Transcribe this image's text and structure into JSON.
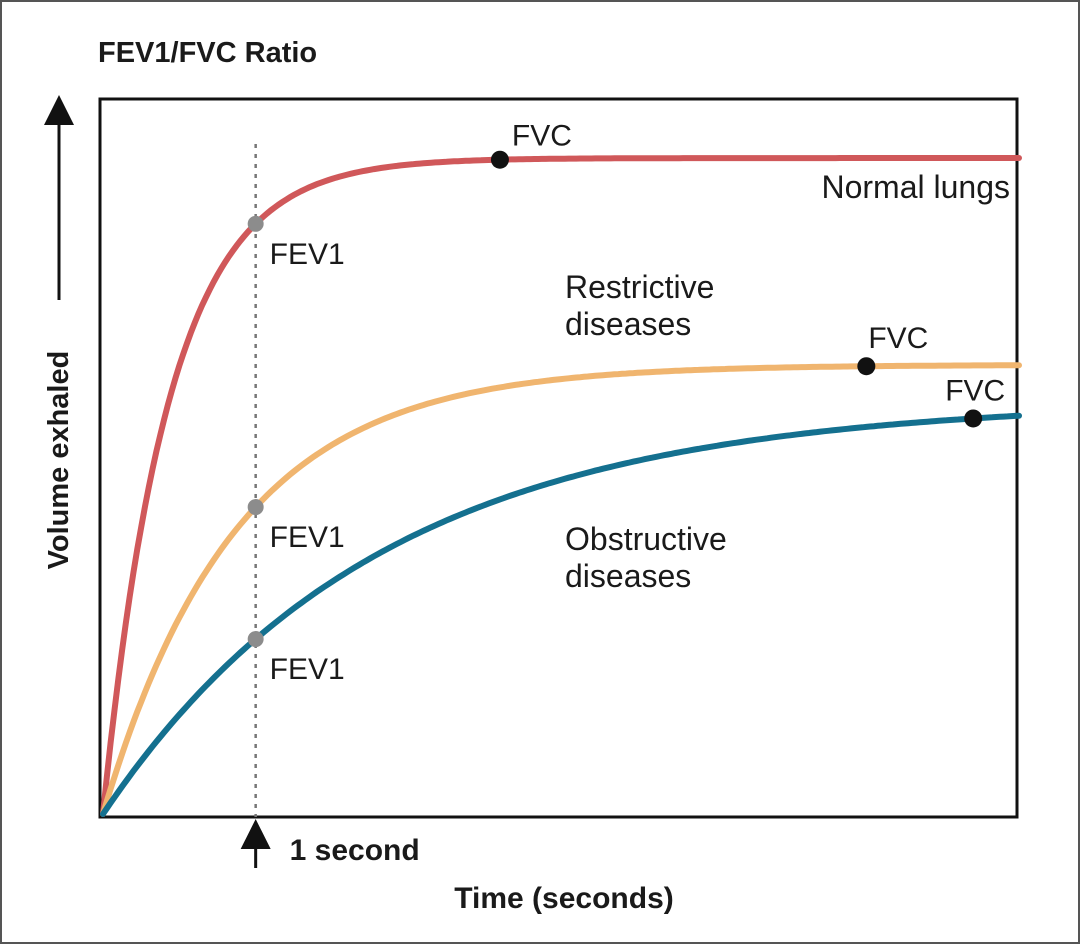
{
  "chart_data": {
    "type": "line",
    "title": "FEV1/FVC Ratio",
    "xlabel": "Time (seconds)",
    "ylabel": "Volume exhaled",
    "xlim": [
      0,
      6
    ],
    "ylim": [
      0,
      1
    ],
    "grid": false,
    "marker": {
      "x": 1,
      "label": "1 second"
    },
    "series": [
      {
        "name": "Normal lungs",
        "color": "#d0585a",
        "plateau": 0.92,
        "rate": 2.3,
        "fev1": {
          "x": 1,
          "label": "FEV1"
        },
        "fvc": {
          "x": 2.6,
          "label": "FVC"
        }
      },
      {
        "name": "Restrictive\ndiseases",
        "color": "#f0b56f",
        "plateau": 0.63,
        "rate": 1.15,
        "fev1": {
          "x": 1,
          "label": "FEV1"
        },
        "fvc": {
          "x": 5.0,
          "label": "FVC"
        }
      },
      {
        "name": "Obstructive\ndiseases",
        "color": "#14708f",
        "plateau": 0.58,
        "rate": 0.55,
        "fev1": {
          "x": 1,
          "label": "FEV1"
        },
        "fvc": {
          "x": 5.7,
          "label": "FVC"
        }
      }
    ]
  }
}
